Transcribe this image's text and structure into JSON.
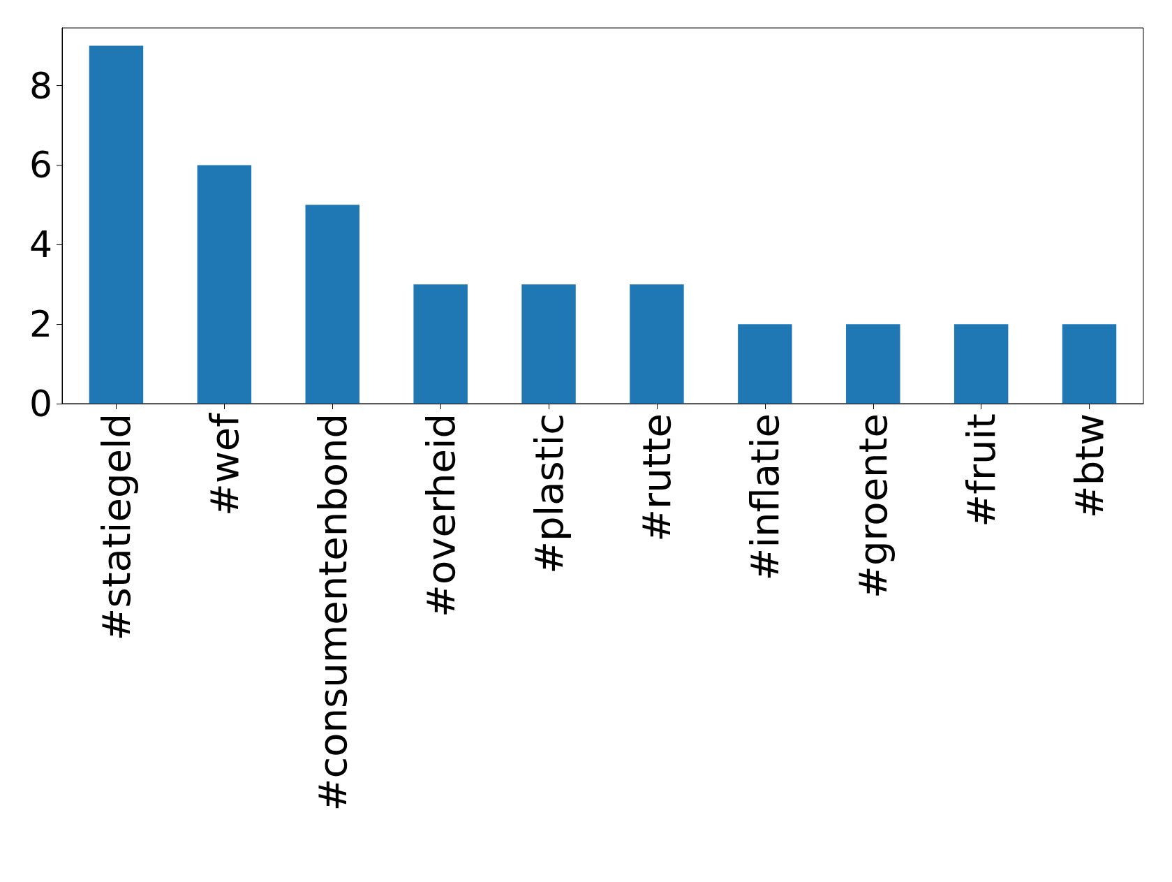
{
  "chart_data": {
    "type": "bar",
    "categories": [
      "#statiegeld",
      "#wef",
      "#consumentenbond",
      "#overheid",
      "#plastic",
      "#rutte",
      "#inflatie",
      "#groente",
      "#fruit",
      "#btw"
    ],
    "values": [
      9,
      6,
      5,
      3,
      3,
      3,
      2,
      2,
      2,
      2
    ],
    "color": "#1f77b4",
    "ylim": [
      0,
      9.45
    ],
    "yticks": [
      0,
      2,
      4,
      6,
      8
    ],
    "grid": false
  }
}
